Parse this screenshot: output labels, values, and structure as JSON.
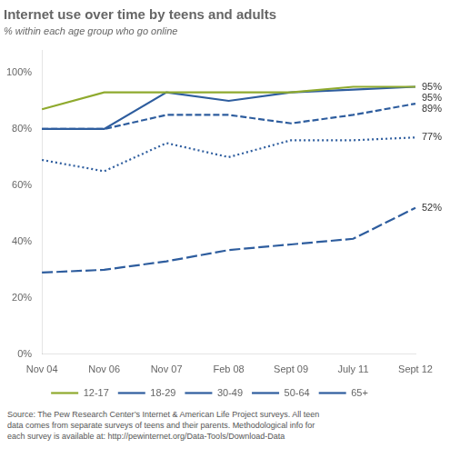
{
  "chart_data": {
    "type": "line",
    "title": "Internet use over time by teens and adults",
    "subtitle": "% within each age group who go online",
    "categories": [
      "Nov 04",
      "Nov 06",
      "Nov 07",
      "Feb 08",
      "Sept 09",
      "July 11",
      "Sept 12"
    ],
    "series": [
      {
        "name": "12-17",
        "color": "#8faa2e",
        "line_style": "solid",
        "values": [
          87,
          93,
          93,
          93,
          93,
          95,
          95
        ]
      },
      {
        "name": "18-29",
        "color": "#2e5d9e",
        "line_style": "solid",
        "values": [
          80,
          80,
          93,
          90,
          93,
          94,
          95
        ]
      },
      {
        "name": "30-49",
        "color": "#2e5d9e",
        "line_style": "dashed",
        "values": [
          80,
          80,
          85,
          85,
          82,
          85,
          89
        ]
      },
      {
        "name": "50-64",
        "color": "#2e5d9e",
        "line_style": "dotted",
        "values": [
          69,
          65,
          75,
          70,
          76,
          76,
          77
        ]
      },
      {
        "name": "65+",
        "color": "#2e5d9e",
        "line_style": "long_dashed",
        "values": [
          29,
          30,
          33,
          37,
          39,
          41,
          52
        ]
      }
    ],
    "ylim": [
      0,
      108
    ],
    "yticks": [
      {
        "value": 0,
        "label": "0%"
      },
      {
        "value": 20,
        "label": "20%"
      },
      {
        "value": 40,
        "label": "40%"
      },
      {
        "value": 60,
        "label": "60%"
      },
      {
        "value": 80,
        "label": "80%"
      },
      {
        "value": 100,
        "label": "100%"
      }
    ],
    "grid": false,
    "legend": "bottom",
    "annotations": [
      {
        "series": "12-17",
        "text": "95%"
      },
      {
        "series": "18-29",
        "text": "95%"
      },
      {
        "series": "30-49",
        "text": "89%"
      },
      {
        "series": "50-64",
        "text": "77%"
      },
      {
        "series": "65+",
        "text": "52%"
      },
      {
        "text": "Source: The Pew Research Center’s Internet & American Life Project surveys. All teen\ndata comes from separate surveys of teens and their parents. Methodological info for\neach survey is available at: http://pewinternet.org/Data-Tools/Download-Data"
      }
    ]
  }
}
